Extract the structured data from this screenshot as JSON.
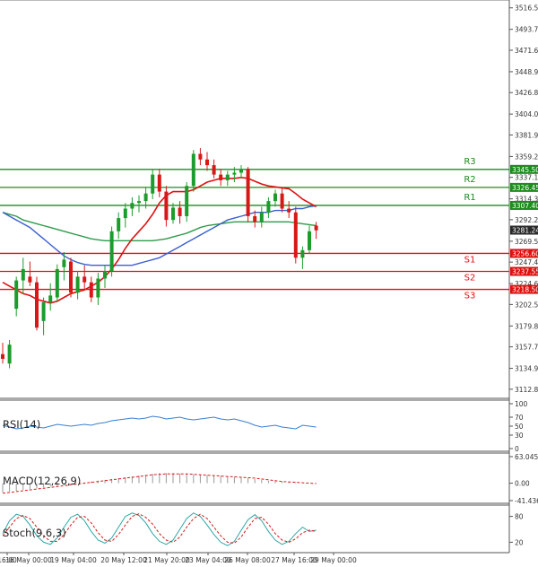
{
  "chart_data": {
    "type": "candlestick",
    "instrument_current_price": "3281.24",
    "main_pane": {
      "y_ticks": [
        "3516.50",
        "3493.75",
        "3471.65",
        "3448.90",
        "3426.80",
        "3404.05",
        "3381.95",
        "3359.20",
        "3337.10",
        "3314.35",
        "3292.25",
        "3269.50",
        "3247.40",
        "3224.65",
        "3202.55",
        "3179.80",
        "3157.70",
        "3134.95",
        "3112.85"
      ],
      "ylim": [
        3107,
        3521
      ],
      "candles": [
        {
          "o": 3150,
          "h": 3162,
          "l": 3140,
          "c": 3145
        },
        {
          "o": 3140,
          "h": 3165,
          "l": 3135,
          "c": 3160
        },
        {
          "o": 3198,
          "h": 3232,
          "l": 3190,
          "c": 3228
        },
        {
          "o": 3228,
          "h": 3252,
          "l": 3214,
          "c": 3240
        },
        {
          "o": 3232,
          "h": 3248,
          "l": 3222,
          "c": 3226
        },
        {
          "o": 3226,
          "h": 3232,
          "l": 3175,
          "c": 3178
        },
        {
          "o": 3185,
          "h": 3210,
          "l": 3170,
          "c": 3205
        },
        {
          "o": 3205,
          "h": 3225,
          "l": 3196,
          "c": 3212
        },
        {
          "o": 3210,
          "h": 3245,
          "l": 3205,
          "c": 3240
        },
        {
          "o": 3242,
          "h": 3258,
          "l": 3228,
          "c": 3250
        },
        {
          "o": 3248,
          "h": 3252,
          "l": 3210,
          "c": 3215
        },
        {
          "o": 3215,
          "h": 3238,
          "l": 3208,
          "c": 3232
        },
        {
          "o": 3232,
          "h": 3244,
          "l": 3218,
          "c": 3226
        },
        {
          "o": 3226,
          "h": 3232,
          "l": 3205,
          "c": 3210
        },
        {
          "o": 3210,
          "h": 3236,
          "l": 3202,
          "c": 3230
        },
        {
          "o": 3230,
          "h": 3244,
          "l": 3220,
          "c": 3238
        },
        {
          "o": 3238,
          "h": 3285,
          "l": 3232,
          "c": 3280
        },
        {
          "o": 3280,
          "h": 3300,
          "l": 3272,
          "c": 3294
        },
        {
          "o": 3294,
          "h": 3310,
          "l": 3284,
          "c": 3304
        },
        {
          "o": 3304,
          "h": 3316,
          "l": 3296,
          "c": 3310
        },
        {
          "o": 3310,
          "h": 3318,
          "l": 3300,
          "c": 3312
        },
        {
          "o": 3312,
          "h": 3326,
          "l": 3304,
          "c": 3320
        },
        {
          "o": 3320,
          "h": 3346,
          "l": 3314,
          "c": 3340
        },
        {
          "o": 3340,
          "h": 3346,
          "l": 3316,
          "c": 3322
        },
        {
          "o": 3322,
          "h": 3328,
          "l": 3285,
          "c": 3292
        },
        {
          "o": 3292,
          "h": 3310,
          "l": 3288,
          "c": 3305
        },
        {
          "o": 3305,
          "h": 3312,
          "l": 3288,
          "c": 3296
        },
        {
          "o": 3296,
          "h": 3332,
          "l": 3290,
          "c": 3328
        },
        {
          "o": 3328,
          "h": 3366,
          "l": 3322,
          "c": 3362
        },
        {
          "o": 3362,
          "h": 3368,
          "l": 3350,
          "c": 3356
        },
        {
          "o": 3356,
          "h": 3364,
          "l": 3344,
          "c": 3350
        },
        {
          "o": 3350,
          "h": 3356,
          "l": 3336,
          "c": 3340
        },
        {
          "o": 3340,
          "h": 3346,
          "l": 3328,
          "c": 3334
        },
        {
          "o": 3334,
          "h": 3344,
          "l": 3328,
          "c": 3340
        },
        {
          "o": 3340,
          "h": 3348,
          "l": 3332,
          "c": 3342
        },
        {
          "o": 3342,
          "h": 3350,
          "l": 3336,
          "c": 3346
        },
        {
          "o": 3346,
          "h": 3348,
          "l": 3290,
          "c": 3296
        },
        {
          "o": 3296,
          "h": 3302,
          "l": 3284,
          "c": 3290
        },
        {
          "o": 3290,
          "h": 3306,
          "l": 3284,
          "c": 3300
        },
        {
          "o": 3300,
          "h": 3316,
          "l": 3294,
          "c": 3312
        },
        {
          "o": 3312,
          "h": 3324,
          "l": 3306,
          "c": 3320
        },
        {
          "o": 3320,
          "h": 3326,
          "l": 3300,
          "c": 3304
        },
        {
          "o": 3304,
          "h": 3312,
          "l": 3294,
          "c": 3300
        },
        {
          "o": 3300,
          "h": 3306,
          "l": 3246,
          "c": 3252
        },
        {
          "o": 3252,
          "h": 3264,
          "l": 3240,
          "c": 3260
        },
        {
          "o": 3260,
          "h": 3286,
          "l": 3256,
          "c": 3280
        },
        {
          "o": 3286,
          "h": 3290,
          "l": 3272,
          "c": 3281
        }
      ],
      "ma_red": [
        3226,
        3222,
        3218,
        3214,
        3212,
        3208,
        3206,
        3204,
        3206,
        3210,
        3214,
        3216,
        3218,
        3222,
        3226,
        3232,
        3240,
        3250,
        3262,
        3272,
        3280,
        3288,
        3298,
        3310,
        3318,
        3322,
        3322,
        3322,
        3324,
        3328,
        3332,
        3334,
        3336,
        3336,
        3336,
        3337,
        3336,
        3333,
        3330,
        3328,
        3327,
        3326,
        3325,
        3320,
        3314,
        3310,
        3306
      ],
      "ma_green": [
        3300,
        3298,
        3296,
        3292,
        3290,
        3288,
        3286,
        3284,
        3282,
        3280,
        3278,
        3276,
        3274,
        3272,
        3271,
        3270,
        3270,
        3270,
        3270,
        3270,
        3270,
        3270,
        3270,
        3271,
        3272,
        3274,
        3276,
        3278,
        3281,
        3284,
        3286,
        3287,
        3288,
        3289,
        3290,
        3290,
        3290,
        3290,
        3290,
        3290,
        3290,
        3290,
        3290,
        3289,
        3288,
        3287,
        3286
      ],
      "ma_blue": [
        3300,
        3296,
        3292,
        3288,
        3284,
        3278,
        3272,
        3266,
        3260,
        3254,
        3250,
        3247,
        3245,
        3244,
        3244,
        3244,
        3244,
        3244,
        3244,
        3244,
        3246,
        3248,
        3250,
        3252,
        3256,
        3260,
        3264,
        3268,
        3272,
        3276,
        3280,
        3284,
        3288,
        3292,
        3294,
        3296,
        3298,
        3300,
        3300,
        3300,
        3302,
        3302,
        3302,
        3304,
        3304,
        3306,
        3307
      ],
      "levels": [
        {
          "name": "R3",
          "value": 3345.5,
          "label": "3345.50",
          "color": "#1e8c1e"
        },
        {
          "name": "R2",
          "value": 3326.45,
          "label": "3326.45",
          "color": "#1e8c1e"
        },
        {
          "name": "R1",
          "value": 3307.4,
          "label": "3307.40",
          "color": "#1e8c1e"
        },
        {
          "name": "S1",
          "value": 3256.6,
          "label": "3256.60",
          "color": "#e01010"
        },
        {
          "name": "S2",
          "value": 3237.55,
          "label": "3237.55",
          "color": "#e01010"
        },
        {
          "name": "S3",
          "value": 3218.5,
          "label": "3218.50",
          "color": "#e01010"
        }
      ]
    },
    "x_ticks": [
      "16:00",
      "16 May 00:00",
      "19 May 04:00",
      "20 May 12:00",
      "21 May 20:00",
      "23 May 04:00",
      "26 May 08:00",
      "27 May 16:00",
      "29 May 00:00"
    ],
    "rsi": {
      "label": "RSI(14)",
      "y_ticks": [
        "100",
        "70",
        "50",
        "30",
        "0"
      ],
      "ylim": [
        0,
        100
      ],
      "values": [
        52,
        48,
        44,
        46,
        50,
        48,
        46,
        50,
        54,
        52,
        50,
        52,
        54,
        52,
        56,
        58,
        62,
        64,
        66,
        68,
        66,
        68,
        72,
        70,
        66,
        68,
        70,
        66,
        64,
        66,
        68,
        70,
        66,
        64,
        66,
        62,
        58,
        52,
        48,
        50,
        52,
        48,
        46,
        44,
        52,
        50,
        48
      ]
    },
    "macd": {
      "label": "MACD(12,26,9)",
      "y_ticks": [
        "63.045",
        "0.00",
        "-41.436"
      ],
      "ylim": [
        -41.436,
        63.045
      ],
      "histogram": [
        -22,
        -20,
        -18,
        -16,
        -14,
        -12,
        -10,
        -8,
        -6,
        -4,
        -2,
        0,
        2,
        4,
        6,
        8,
        10,
        12,
        14,
        16,
        18,
        20,
        22,
        24,
        24,
        24,
        23,
        22,
        21,
        20,
        19,
        18,
        17,
        16,
        15,
        14,
        12,
        10,
        8,
        6,
        5,
        4,
        3,
        2,
        1,
        0,
        -1
      ],
      "signal": [
        -24,
        -22,
        -20,
        -18,
        -16,
        -14,
        -12,
        -10,
        -8,
        -6,
        -4,
        -2,
        0,
        2,
        4,
        6,
        8,
        10,
        12,
        14,
        16,
        18,
        20,
        21,
        22,
        22,
        22,
        22,
        21,
        20,
        19,
        18,
        17,
        16,
        15,
        14,
        13,
        12,
        10,
        8,
        6,
        4,
        3,
        2,
        1,
        0,
        -1
      ]
    },
    "stoch": {
      "label": "Stoch(9,6,3)",
      "y_ticks": [
        "80",
        "20"
      ],
      "ylim": [
        0,
        100
      ],
      "k": [
        40,
        70,
        85,
        80,
        60,
        35,
        20,
        15,
        30,
        55,
        78,
        85,
        70,
        45,
        25,
        18,
        30,
        55,
        80,
        88,
        82,
        65,
        40,
        22,
        15,
        25,
        50,
        75,
        88,
        80,
        60,
        38,
        20,
        12,
        22,
        48,
        72,
        84,
        70,
        45,
        25,
        15,
        22,
        40,
        55,
        45,
        48
      ],
      "d": [
        35,
        55,
        75,
        82,
        75,
        55,
        35,
        22,
        22,
        38,
        60,
        78,
        80,
        65,
        42,
        25,
        22,
        38,
        60,
        80,
        86,
        78,
        62,
        40,
        25,
        20,
        32,
        55,
        75,
        85,
        75,
        55,
        35,
        20,
        18,
        32,
        55,
        75,
        78,
        62,
        40,
        25,
        20,
        28,
        42,
        48,
        45
      ]
    }
  }
}
